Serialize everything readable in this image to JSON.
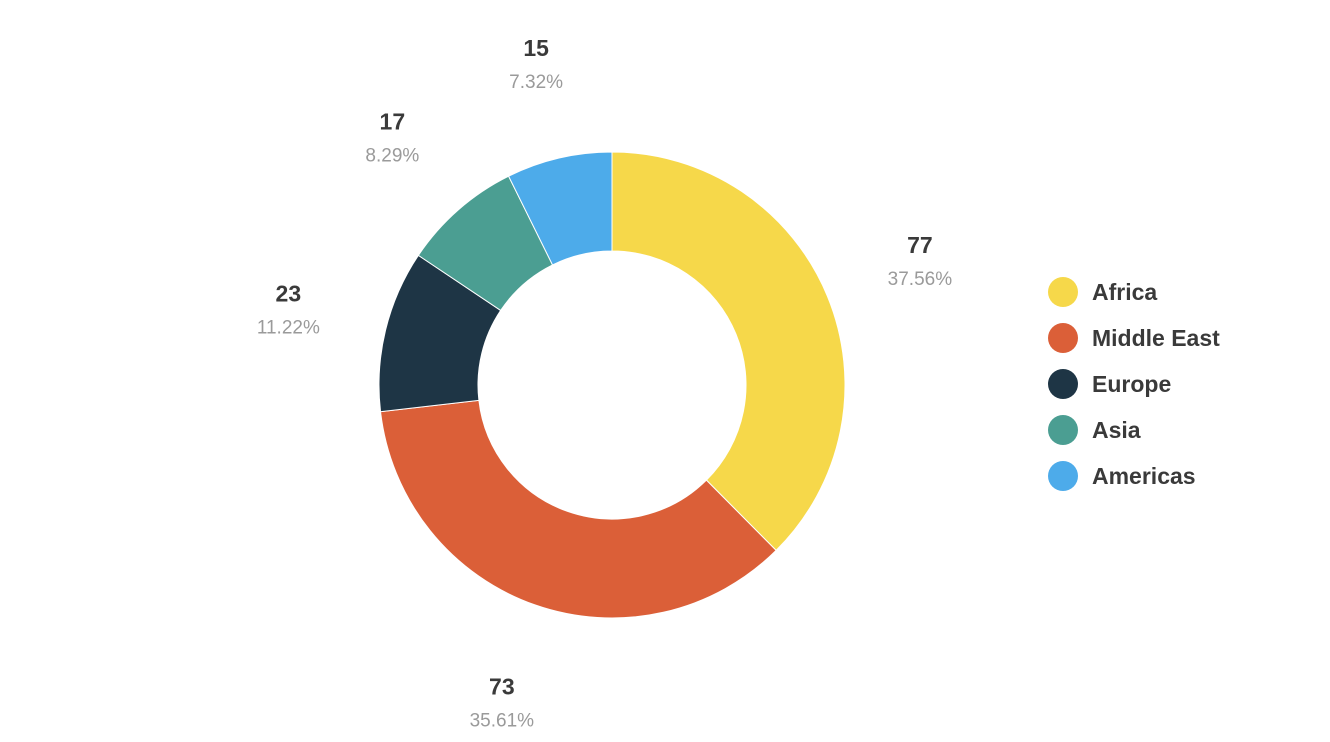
{
  "chart_data": {
    "type": "pie",
    "donut": true,
    "slices": [
      {
        "label": "Africa",
        "value": 77,
        "percent": "37.56%",
        "color": "#F6D84A"
      },
      {
        "label": "Middle East",
        "value": 73,
        "percent": "35.61%",
        "color": "#DB5F38"
      },
      {
        "label": "Europe",
        "value": 23,
        "percent": "11.22%",
        "color": "#1E3545"
      },
      {
        "label": "Asia",
        "value": 17,
        "percent": "8.29%",
        "color": "#4B9E92"
      },
      {
        "label": "Americas",
        "value": 15,
        "percent": "7.32%",
        "color": "#4DABEA"
      }
    ],
    "legend_position": "right"
  }
}
